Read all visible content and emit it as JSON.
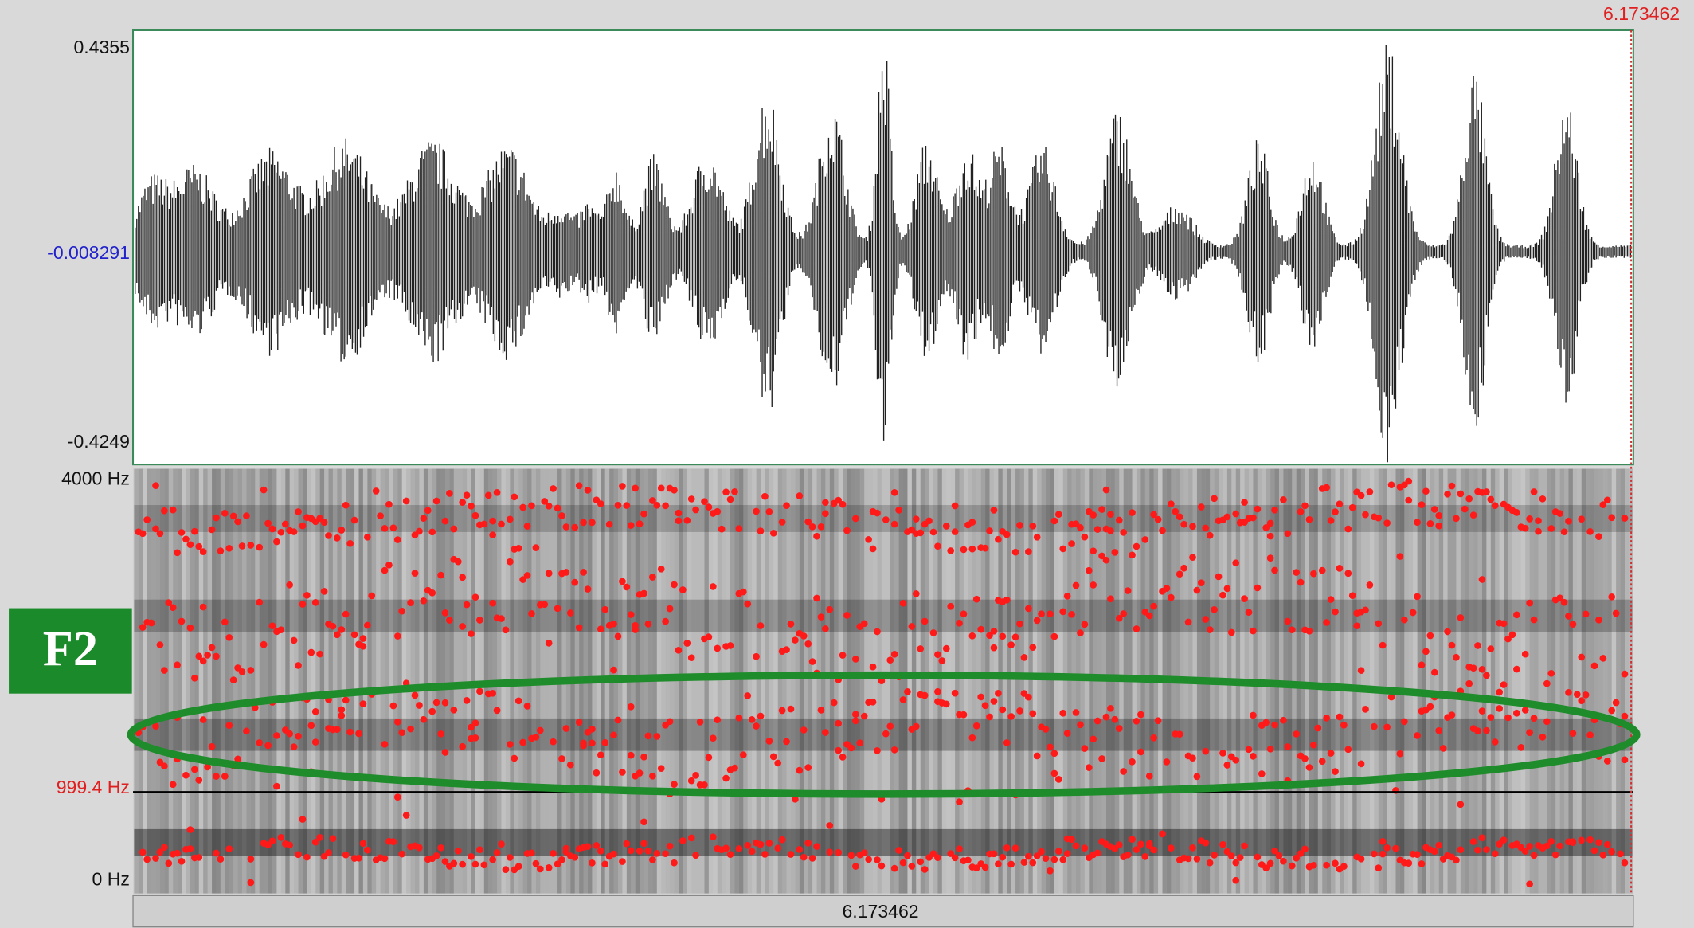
{
  "waveform": {
    "max_label": "0.4355",
    "mid_label": "-0.008291",
    "min_label": "-0.4249"
  },
  "spectrogram": {
    "top_label": "4000 Hz",
    "cursor_label": "999.4 Hz",
    "bottom_label": "0 Hz"
  },
  "time_cursor_label": "6.173462",
  "time_bar_label": "6.173462",
  "annotation": "F2"
}
